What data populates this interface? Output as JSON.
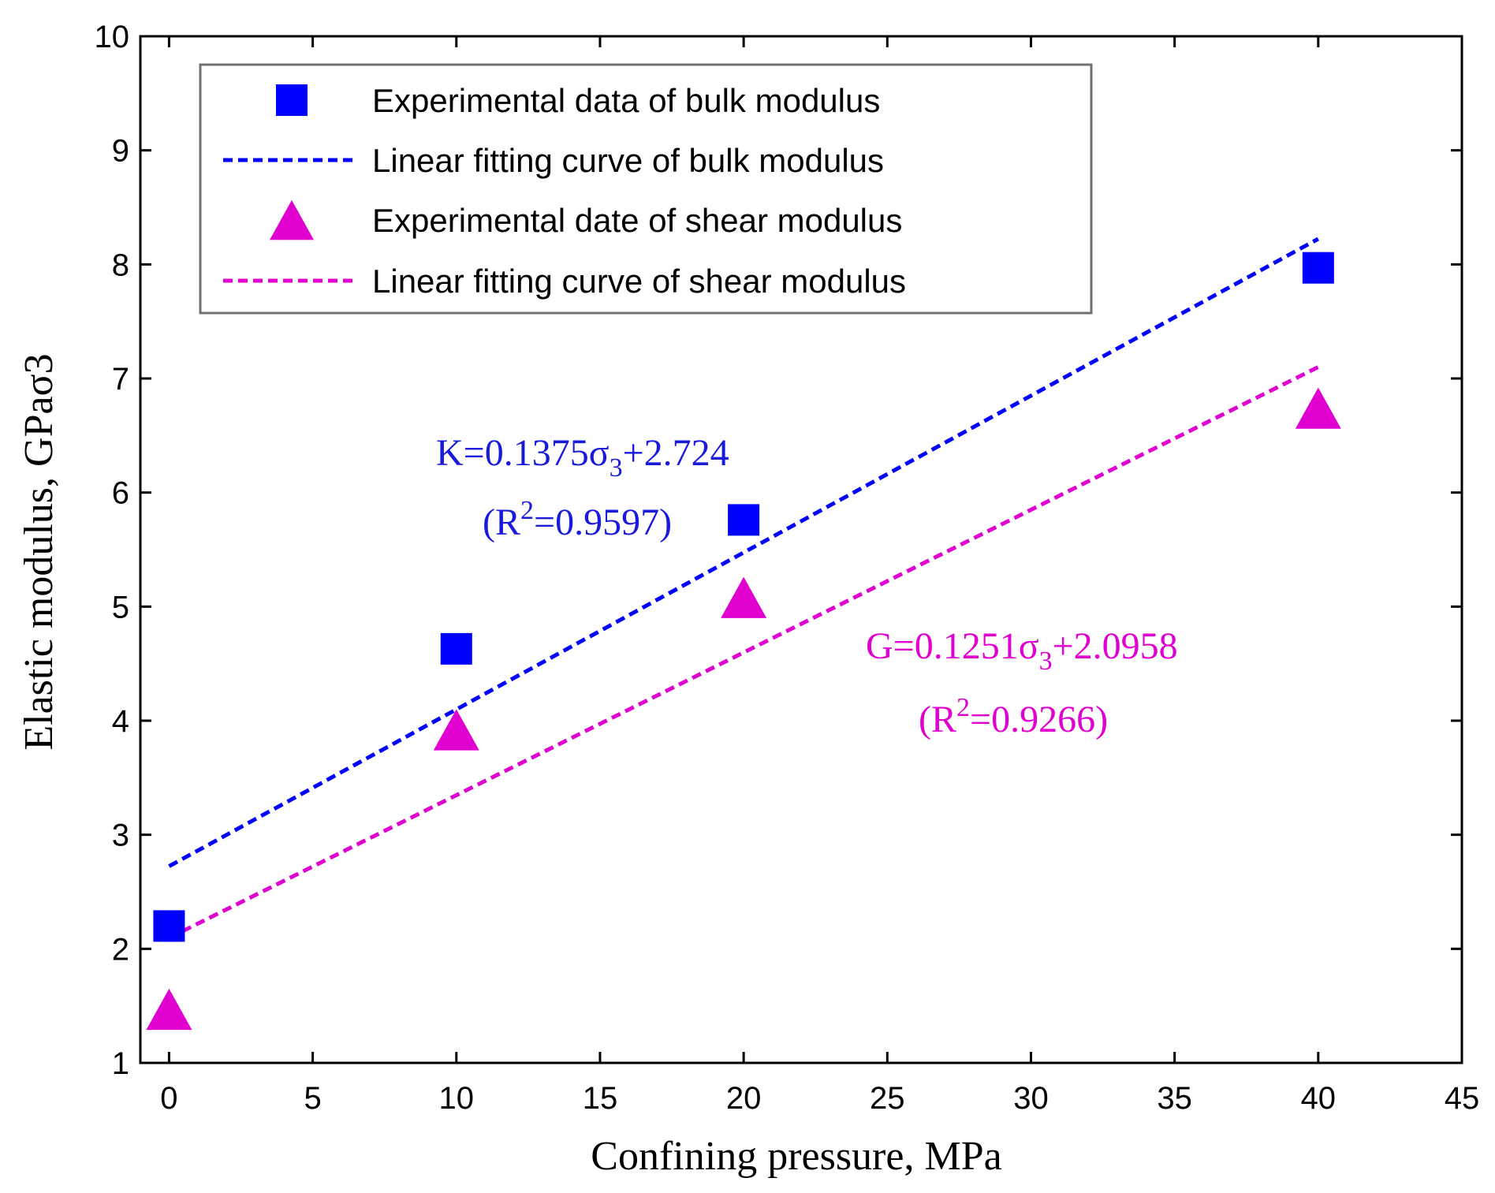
{
  "chart_data": {
    "type": "scatter",
    "xlabel": "Confining pressure, MPa",
    "ylabel": "Elastic modulus, GPaσ3",
    "xlim": [
      -1,
      45
    ],
    "ylim": [
      1,
      10
    ],
    "xticks": [
      0,
      5,
      10,
      15,
      20,
      25,
      30,
      35,
      40,
      45
    ],
    "yticks": [
      1,
      2,
      3,
      4,
      5,
      6,
      7,
      8,
      9,
      10
    ],
    "grid": false,
    "legend_position": "top-left",
    "series": [
      {
        "name": "Experimental data of bulk modulus",
        "kind": "scatter",
        "marker": "square",
        "color": "#0000ff",
        "x": [
          0,
          10,
          20,
          40
        ],
        "y": [
          2.2,
          4.63,
          5.76,
          7.97
        ]
      },
      {
        "name": "Linear fitting curve of bulk modulus",
        "kind": "line",
        "dash": true,
        "color": "#0000ff",
        "x": [
          0,
          40
        ],
        "y": [
          2.724,
          8.224
        ]
      },
      {
        "name": "Experimental date of shear modulus",
        "kind": "scatter",
        "marker": "triangle",
        "color": "#e000d0",
        "x": [
          0,
          10,
          20,
          40
        ],
        "y": [
          1.47,
          3.92,
          5.08,
          6.74
        ]
      },
      {
        "name": "Linear fitting curve of shear modulus",
        "kind": "line",
        "dash": true,
        "color": "#e000d0",
        "x": [
          0,
          40
        ],
        "y": [
          2.0958,
          7.1
        ]
      }
    ],
    "annotations": [
      {
        "id": "bulk",
        "color": "#1a1adc",
        "line1": {
          "prefix": "K=0.1375σ",
          "sub": "3",
          "suffix": "+2.724"
        },
        "line2": {
          "prefix": "(R",
          "sup": "2",
          "suffix": "=0.9597)"
        }
      },
      {
        "id": "shear",
        "color": "#e000d0",
        "line1": {
          "prefix": "G=0.1251σ",
          "sub": "3",
          "suffix": "+2.0958"
        },
        "line2": {
          "prefix": "(R",
          "sup": "2",
          "suffix": "=0.9266)"
        }
      }
    ]
  }
}
